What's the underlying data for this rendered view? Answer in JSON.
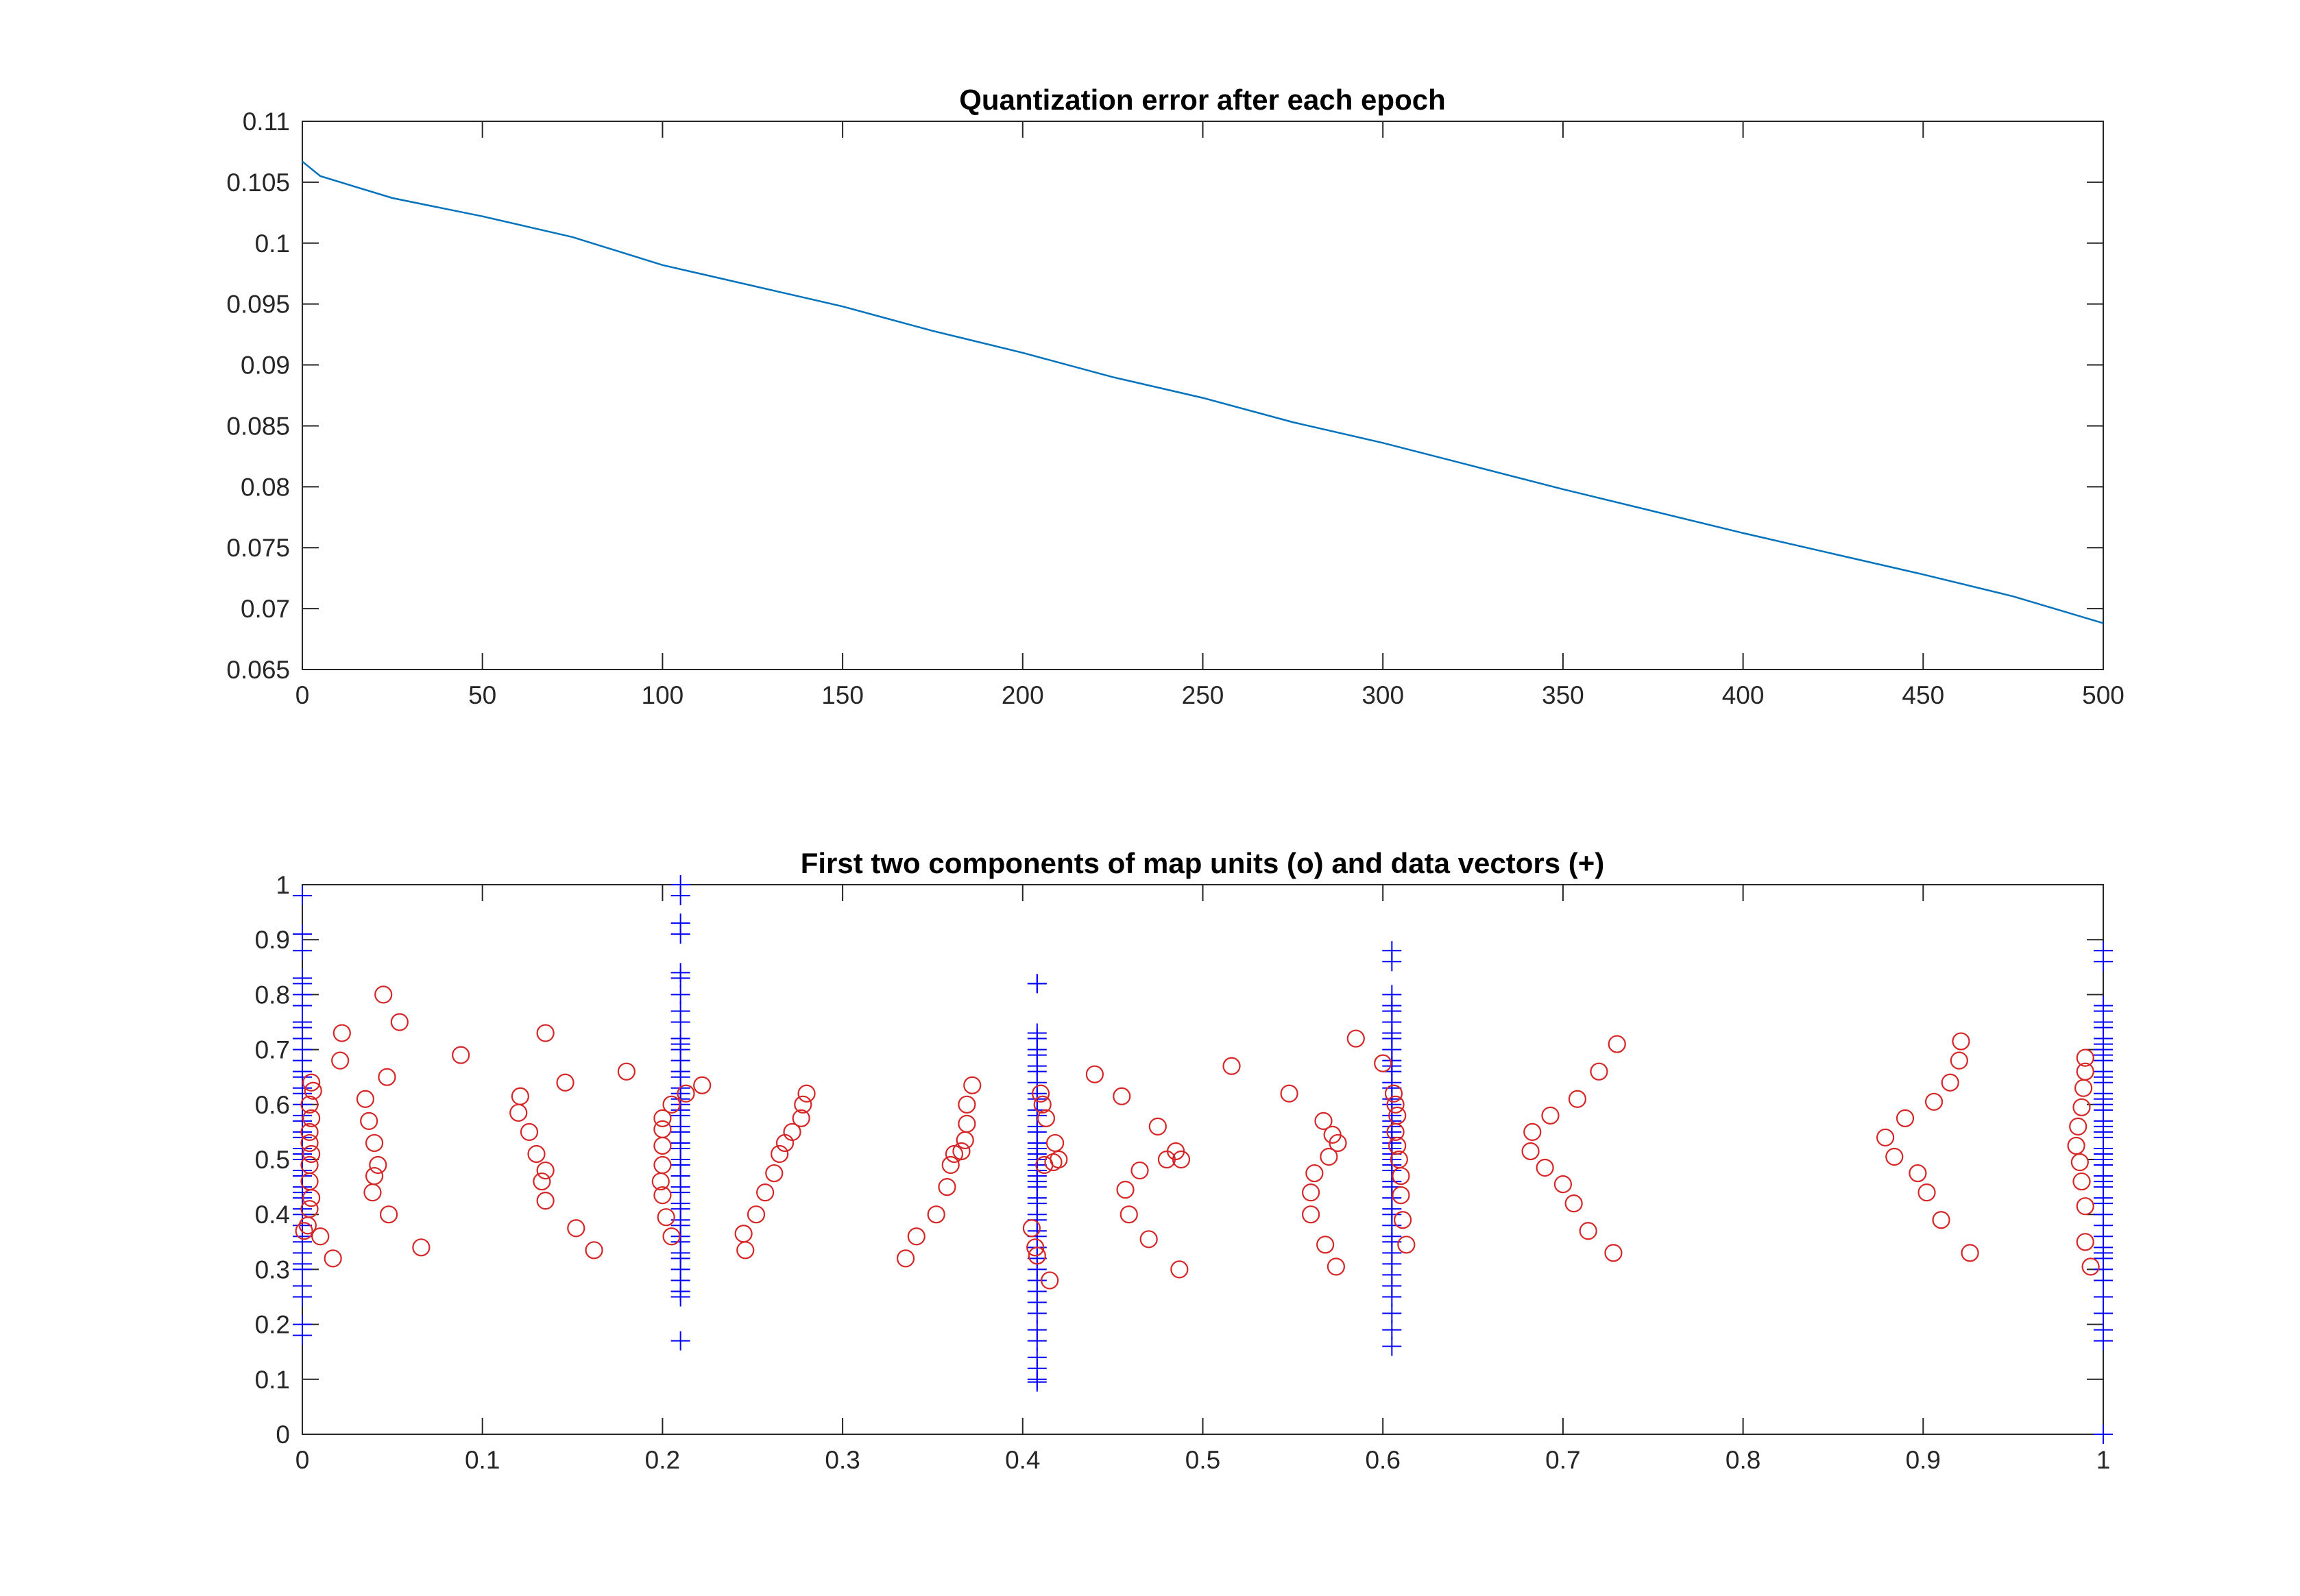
{
  "colors": {
    "line": "#0072BD",
    "circle": "#D62728",
    "plus": "#0000FF",
    "axis": "#262626"
  },
  "chart_data": [
    {
      "type": "line",
      "title": "Quantization error after each epoch",
      "xlabel": "",
      "ylabel": "",
      "xlim": [
        0,
        500
      ],
      "ylim": [
        0.065,
        0.11
      ],
      "xticks": [
        "0",
        "50",
        "100",
        "150",
        "200",
        "250",
        "300",
        "350",
        "400",
        "450",
        "500"
      ],
      "yticks": [
        "0.065",
        "0.07",
        "0.075",
        "0.08",
        "0.085",
        "0.09",
        "0.095",
        "0.1",
        "0.105",
        "0.11"
      ],
      "grid": false,
      "series": [
        {
          "name": "quantization error",
          "x": [
            0,
            5,
            25,
            50,
            75,
            100,
            125,
            150,
            175,
            200,
            225,
            250,
            275,
            300,
            325,
            350,
            375,
            400,
            425,
            450,
            475,
            500
          ],
          "y": [
            0.1067,
            0.1055,
            0.1037,
            0.1022,
            0.1005,
            0.0982,
            0.0965,
            0.0948,
            0.0928,
            0.091,
            0.089,
            0.0873,
            0.0853,
            0.0836,
            0.0817,
            0.0798,
            0.078,
            0.0762,
            0.0745,
            0.0728,
            0.071,
            0.0688
          ]
        }
      ]
    },
    {
      "type": "scatter",
      "title": "First two components of map units (o) and data vectors (+)",
      "xlabel": "",
      "ylabel": "",
      "xlim": [
        0,
        1
      ],
      "ylim": [
        0,
        1
      ],
      "xticks": [
        "0",
        "0.1",
        "0.2",
        "0.3",
        "0.4",
        "0.5",
        "0.6",
        "0.7",
        "0.8",
        "0.9",
        "1"
      ],
      "yticks": [
        "0",
        "0.1",
        "0.2",
        "0.3",
        "0.4",
        "0.5",
        "0.6",
        "0.7",
        "0.8",
        "0.9",
        "1"
      ],
      "grid": false,
      "series": [
        {
          "name": "map units (o)",
          "marker": "o",
          "points": [
            [
              0.005,
              0.64
            ],
            [
              0.006,
              0.625
            ],
            [
              0.004,
              0.6
            ],
            [
              0.005,
              0.575
            ],
            [
              0.004,
              0.55
            ],
            [
              0.004,
              0.53
            ],
            [
              0.005,
              0.51
            ],
            [
              0.004,
              0.49
            ],
            [
              0.004,
              0.46
            ],
            [
              0.005,
              0.43
            ],
            [
              0.004,
              0.41
            ],
            [
              0.003,
              0.38
            ],
            [
              0.001,
              0.37
            ],
            [
              0.01,
              0.36
            ],
            [
              0.017,
              0.32
            ],
            [
              0.021,
              0.68
            ],
            [
              0.022,
              0.73
            ],
            [
              0.045,
              0.8
            ],
            [
              0.054,
              0.75
            ],
            [
              0.047,
              0.65
            ],
            [
              0.035,
              0.61
            ],
            [
              0.037,
              0.57
            ],
            [
              0.04,
              0.53
            ],
            [
              0.042,
              0.49
            ],
            [
              0.04,
              0.47
            ],
            [
              0.039,
              0.44
            ],
            [
              0.048,
              0.4
            ],
            [
              0.066,
              0.34
            ],
            [
              0.088,
              0.69
            ],
            [
              0.12,
              0.585
            ],
            [
              0.121,
              0.615
            ],
            [
              0.126,
              0.55
            ],
            [
              0.13,
              0.51
            ],
            [
              0.135,
              0.48
            ],
            [
              0.133,
              0.46
            ],
            [
              0.135,
              0.425
            ],
            [
              0.135,
              0.73
            ],
            [
              0.146,
              0.64
            ],
            [
              0.152,
              0.375
            ],
            [
              0.162,
              0.335
            ],
            [
              0.18,
              0.66
            ],
            [
              0.2,
              0.575
            ],
            [
              0.2,
              0.555
            ],
            [
              0.2,
              0.525
            ],
            [
              0.2,
              0.49
            ],
            [
              0.199,
              0.46
            ],
            [
              0.2,
              0.435
            ],
            [
              0.202,
              0.395
            ],
            [
              0.205,
              0.36
            ],
            [
              0.205,
              0.6
            ],
            [
              0.222,
              0.635
            ],
            [
              0.213,
              0.62
            ],
            [
              0.245,
              0.365
            ],
            [
              0.246,
              0.335
            ],
            [
              0.252,
              0.4
            ],
            [
              0.257,
              0.44
            ],
            [
              0.262,
              0.475
            ],
            [
              0.265,
              0.51
            ],
            [
              0.268,
              0.53
            ],
            [
              0.272,
              0.55
            ],
            [
              0.277,
              0.575
            ],
            [
              0.278,
              0.6
            ],
            [
              0.28,
              0.62
            ],
            [
              0.335,
              0.32
            ],
            [
              0.341,
              0.36
            ],
            [
              0.352,
              0.4
            ],
            [
              0.358,
              0.45
            ],
            [
              0.36,
              0.49
            ],
            [
              0.362,
              0.51
            ],
            [
              0.366,
              0.515
            ],
            [
              0.368,
              0.535
            ],
            [
              0.369,
              0.565
            ],
            [
              0.369,
              0.6
            ],
            [
              0.372,
              0.635
            ],
            [
              0.405,
              0.375
            ],
            [
              0.407,
              0.34
            ],
            [
              0.408,
              0.325
            ],
            [
              0.41,
              0.62
            ],
            [
              0.411,
              0.6
            ],
            [
              0.413,
              0.575
            ],
            [
              0.412,
              0.49
            ],
            [
              0.415,
              0.28
            ],
            [
              0.418,
              0.53
            ],
            [
              0.42,
              0.5
            ],
            [
              0.417,
              0.495
            ],
            [
              0.44,
              0.655
            ],
            [
              0.455,
              0.615
            ],
            [
              0.457,
              0.445
            ],
            [
              0.459,
              0.4
            ],
            [
              0.465,
              0.48
            ],
            [
              0.47,
              0.355
            ],
            [
              0.475,
              0.56
            ],
            [
              0.48,
              0.5
            ],
            [
              0.485,
              0.515
            ],
            [
              0.487,
              0.3
            ],
            [
              0.488,
              0.5
            ],
            [
              0.516,
              0.67
            ],
            [
              0.548,
              0.62
            ],
            [
              0.56,
              0.44
            ],
            [
              0.56,
              0.4
            ],
            [
              0.562,
              0.475
            ],
            [
              0.567,
              0.57
            ],
            [
              0.568,
              0.345
            ],
            [
              0.57,
              0.505
            ],
            [
              0.572,
              0.545
            ],
            [
              0.574,
              0.305
            ],
            [
              0.575,
              0.53
            ],
            [
              0.585,
              0.72
            ],
            [
              0.6,
              0.675
            ],
            [
              0.606,
              0.62
            ],
            [
              0.607,
              0.6
            ],
            [
              0.608,
              0.58
            ],
            [
              0.607,
              0.55
            ],
            [
              0.608,
              0.525
            ],
            [
              0.609,
              0.5
            ],
            [
              0.61,
              0.47
            ],
            [
              0.61,
              0.435
            ],
            [
              0.611,
              0.39
            ],
            [
              0.613,
              0.345
            ],
            [
              0.682,
              0.515
            ],
            [
              0.683,
              0.55
            ],
            [
              0.69,
              0.485
            ],
            [
              0.693,
              0.58
            ],
            [
              0.7,
              0.455
            ],
            [
              0.706,
              0.42
            ],
            [
              0.708,
              0.61
            ],
            [
              0.714,
              0.37
            ],
            [
              0.72,
              0.66
            ],
            [
              0.728,
              0.33
            ],
            [
              0.73,
              0.71
            ],
            [
              0.879,
              0.54
            ],
            [
              0.884,
              0.505
            ],
            [
              0.89,
              0.575
            ],
            [
              0.897,
              0.475
            ],
            [
              0.902,
              0.44
            ],
            [
              0.906,
              0.605
            ],
            [
              0.91,
              0.39
            ],
            [
              0.915,
              0.64
            ],
            [
              0.92,
              0.68
            ],
            [
              0.921,
              0.715
            ],
            [
              0.926,
              0.33
            ],
            [
              0.985,
              0.525
            ],
            [
              0.986,
              0.56
            ],
            [
              0.987,
              0.495
            ],
            [
              0.988,
              0.595
            ],
            [
              0.988,
              0.46
            ],
            [
              0.989,
              0.63
            ],
            [
              0.99,
              0.66
            ],
            [
              0.99,
              0.415
            ],
            [
              0.99,
              0.685
            ],
            [
              0.99,
              0.35
            ],
            [
              0.993,
              0.305
            ]
          ]
        },
        {
          "name": "data vectors (+)",
          "marker": "+",
          "clusters": [
            {
              "x": 0.0,
              "y": [
                0.98,
                0.91,
                0.88,
                0.83,
                0.82,
                0.8,
                0.78,
                0.75,
                0.74,
                0.72,
                0.7,
                0.68,
                0.66,
                0.65,
                0.63,
                0.62,
                0.6,
                0.58,
                0.57,
                0.55,
                0.54,
                0.52,
                0.51,
                0.5,
                0.48,
                0.47,
                0.45,
                0.44,
                0.43,
                0.41,
                0.4,
                0.38,
                0.36,
                0.35,
                0.33,
                0.31,
                0.3,
                0.27,
                0.25,
                0.2,
                0.18
              ]
            },
            {
              "x": 0.21,
              "y": [
                1.0,
                0.98,
                0.93,
                0.91,
                0.84,
                0.83,
                0.8,
                0.77,
                0.75,
                0.72,
                0.71,
                0.7,
                0.68,
                0.66,
                0.65,
                0.63,
                0.62,
                0.61,
                0.6,
                0.59,
                0.58,
                0.56,
                0.55,
                0.53,
                0.52,
                0.5,
                0.49,
                0.47,
                0.45,
                0.44,
                0.42,
                0.41,
                0.39,
                0.38,
                0.36,
                0.35,
                0.33,
                0.32,
                0.3,
                0.28,
                0.26,
                0.25,
                0.17
              ]
            },
            {
              "x": 0.408,
              "y": [
                0.82,
                0.82,
                0.73,
                0.72,
                0.7,
                0.69,
                0.67,
                0.66,
                0.64,
                0.62,
                0.61,
                0.59,
                0.58,
                0.56,
                0.55,
                0.53,
                0.52,
                0.51,
                0.5,
                0.49,
                0.48,
                0.47,
                0.46,
                0.45,
                0.43,
                0.42,
                0.4,
                0.39,
                0.37,
                0.36,
                0.34,
                0.32,
                0.3,
                0.28,
                0.26,
                0.24,
                0.22,
                0.19,
                0.17,
                0.14,
                0.12,
                0.1,
                0.095
              ]
            },
            {
              "x": 0.605,
              "y": [
                0.88,
                0.86,
                0.8,
                0.78,
                0.77,
                0.75,
                0.73,
                0.72,
                0.7,
                0.68,
                0.67,
                0.66,
                0.64,
                0.63,
                0.61,
                0.6,
                0.58,
                0.57,
                0.56,
                0.55,
                0.54,
                0.53,
                0.52,
                0.51,
                0.5,
                0.49,
                0.48,
                0.46,
                0.45,
                0.43,
                0.41,
                0.4,
                0.38,
                0.36,
                0.35,
                0.33,
                0.31,
                0.29,
                0.27,
                0.25,
                0.22,
                0.19,
                0.16
              ]
            },
            {
              "x": 1.0,
              "y": [
                0.88,
                0.86,
                0.78,
                0.77,
                0.75,
                0.74,
                0.72,
                0.71,
                0.7,
                0.69,
                0.68,
                0.66,
                0.65,
                0.64,
                0.62,
                0.61,
                0.6,
                0.59,
                0.57,
                0.56,
                0.55,
                0.54,
                0.52,
                0.51,
                0.5,
                0.49,
                0.47,
                0.46,
                0.45,
                0.43,
                0.42,
                0.4,
                0.38,
                0.36,
                0.34,
                0.33,
                0.32,
                0.3,
                0.28,
                0.25,
                0.22,
                0.19,
                0.17,
                0.0
              ]
            }
          ]
        }
      ]
    }
  ]
}
